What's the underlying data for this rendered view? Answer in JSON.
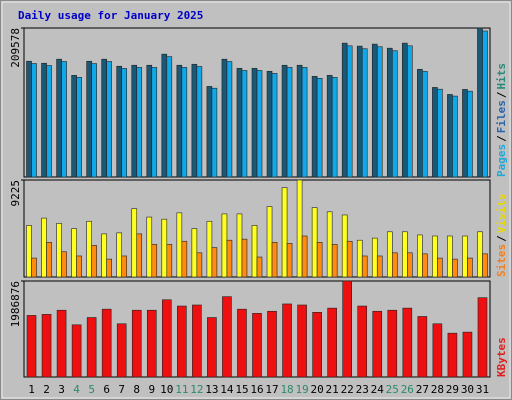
{
  "chart_data": [
    {
      "type": "bar",
      "title": "Daily usage for January 2025",
      "ylim": [
        0,
        209578
      ],
      "yticks": [
        209578
      ],
      "legend": [
        {
          "name": "Pages",
          "color": "#20a8d8"
        },
        {
          "name": "Files",
          "color": "#2a64a8"
        },
        {
          "name": "Hits",
          "color": "#2a8a7a"
        }
      ],
      "legend_separator": "/",
      "series": [
        {
          "color": "#1a5878",
          "values": [
            162840,
            160000,
            165700,
            143000,
            162800,
            165700,
            155800,
            157200,
            157200,
            172800,
            157200,
            158600,
            127400,
            165700,
            152900,
            152900,
            148700,
            157200,
            157200,
            141600,
            143000,
            188300,
            184100,
            186900,
            181200,
            188300,
            151500,
            126000,
            116100,
            123200,
            209578
          ]
        },
        {
          "color": "#10a8e8",
          "values": [
            159600,
            156800,
            162400,
            140100,
            159500,
            162400,
            152700,
            154100,
            154100,
            169300,
            154100,
            155400,
            124900,
            162400,
            149800,
            149800,
            145700,
            154100,
            154100,
            138800,
            140100,
            184500,
            180400,
            183200,
            177600,
            184500,
            148500,
            123500,
            113800,
            120700,
            205400
          ]
        }
      ]
    },
    {
      "type": "bar",
      "ylim": [
        0,
        9225
      ],
      "yticks": [
        9225
      ],
      "legend": [
        {
          "name": "Sites",
          "color": "#f08020"
        },
        {
          "name": "Visits",
          "color": "#e8d800"
        }
      ],
      "legend_separator": "/",
      "series": [
        {
          "color": "#ffff20",
          "values": [
            4900,
            5600,
            5100,
            4600,
            5300,
            4100,
            4200,
            6500,
            5700,
            5500,
            6100,
            4600,
            5300,
            6000,
            6000,
            4900,
            6700,
            8500,
            9225,
            6600,
            6200,
            5900,
            3500,
            3700,
            4300,
            4300,
            4000,
            3900,
            3900,
            3900,
            4300
          ]
        },
        {
          "color": "#ff8c10",
          "values": [
            1800,
            3300,
            2400,
            2000,
            3000,
            1700,
            2000,
            4100,
            3100,
            3100,
            3400,
            2300,
            2800,
            3500,
            3600,
            1900,
            3300,
            3200,
            3900,
            3300,
            3100,
            3400,
            2000,
            2000,
            2300,
            2300,
            2200,
            1800,
            1700,
            1800,
            2200
          ]
        }
      ]
    },
    {
      "type": "bar",
      "ylim": [
        0,
        1986876
      ],
      "yticks": [
        1986876
      ],
      "legend": [
        {
          "name": "KBytes",
          "color": "#e02020"
        }
      ],
      "categories": [
        "1",
        "2",
        "3",
        "4",
        "5",
        "6",
        "7",
        "8",
        "9",
        "10",
        "11",
        "12",
        "13",
        "14",
        "15",
        "16",
        "17",
        "18",
        "19",
        "20",
        "21",
        "22",
        "23",
        "24",
        "25",
        "26",
        "27",
        "28",
        "29",
        "30",
        "31"
      ],
      "category_colors": [
        "#000000",
        "#000000",
        "#000000",
        "#2a8a6a",
        "#2a8a6a",
        "#000000",
        "#000000",
        "#000000",
        "#000000",
        "#000000",
        "#2a8a6a",
        "#2a8a6a",
        "#000000",
        "#000000",
        "#000000",
        "#000000",
        "#000000",
        "#2a8a6a",
        "#2a8a6a",
        "#000000",
        "#000000",
        "#000000",
        "#000000",
        "#000000",
        "#2a8a6a",
        "#2a8a6a",
        "#000000",
        "#000000",
        "#000000",
        "#000000",
        "#000000"
      ],
      "series": [
        {
          "color": "#ee1010",
          "values": [
            1274200,
            1295800,
            1382200,
            1079900,
            1231000,
            1403800,
            1101400,
            1382200,
            1382200,
            1598200,
            1468600,
            1490200,
            1231000,
            1663000,
            1403800,
            1317400,
            1360600,
            1511800,
            1490200,
            1339000,
            1425400,
            1986876,
            1468600,
            1360600,
            1382200,
            1425400,
            1252600,
            1101400,
            907100,
            928700,
            1641400
          ]
        }
      ]
    }
  ]
}
